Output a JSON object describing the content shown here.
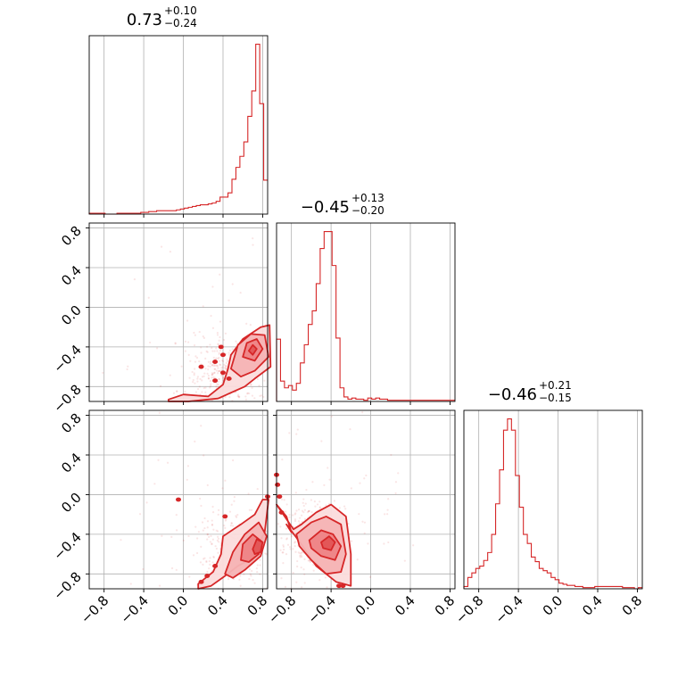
{
  "chart_data": {
    "type": "corner",
    "color": "#d62728",
    "shade_color": "#f4a7a8",
    "grid": true,
    "axis_range": [
      -0.95,
      0.85
    ],
    "ticks": [
      -0.8,
      -0.4,
      0.0,
      0.4,
      0.8
    ],
    "tick_labels": [
      "−0.8",
      "−0.4",
      "0.0",
      "0.4",
      "0.8"
    ],
    "titles": [
      {
        "median": "0.73",
        "plus": "+0.10",
        "minus": "−0.24"
      },
      {
        "median": "−0.45",
        "plus": "+0.13",
        "minus": "−0.20"
      },
      {
        "median": "−0.46",
        "plus": "+0.21",
        "minus": "−0.15"
      }
    ],
    "histograms": [
      {
        "x": [
          -0.93,
          -0.89,
          -0.85,
          -0.81,
          -0.77,
          -0.73,
          -0.69,
          -0.65,
          -0.61,
          -0.57,
          -0.53,
          -0.49,
          -0.45,
          -0.41,
          -0.37,
          -0.33,
          -0.29,
          -0.25,
          -0.21,
          -0.17,
          -0.13,
          -0.09,
          -0.05,
          -0.01,
          0.03,
          0.07,
          0.11,
          0.15,
          0.19,
          0.23,
          0.27,
          0.31,
          0.35,
          0.39,
          0.43,
          0.47,
          0.51,
          0.55,
          0.59,
          0.63,
          0.67,
          0.71,
          0.75,
          0.79,
          0.83
        ],
        "counts": [
          1,
          1,
          1,
          1,
          0,
          0,
          0,
          1,
          1,
          1,
          1,
          1,
          1,
          2,
          2,
          3,
          3,
          4,
          4,
          4,
          4,
          4,
          5,
          6,
          7,
          8,
          9,
          10,
          11,
          11,
          12,
          13,
          15,
          20,
          20,
          25,
          41,
          55,
          68,
          85,
          115,
          145,
          200,
          130,
          40
        ]
      },
      {
        "x": [
          -0.93,
          -0.89,
          -0.85,
          -0.81,
          -0.77,
          -0.73,
          -0.69,
          -0.65,
          -0.61,
          -0.57,
          -0.53,
          -0.49,
          -0.45,
          -0.41,
          -0.37,
          -0.33,
          -0.29,
          -0.25,
          -0.21,
          -0.17,
          -0.13,
          -0.09,
          -0.05,
          -0.01,
          0.03,
          0.07,
          0.11,
          0.15,
          0.19,
          0.23,
          0.27,
          0.31,
          0.35,
          0.39,
          0.43,
          0.47,
          0.51,
          0.55,
          0.59,
          0.63,
          0.67,
          0.71,
          0.75,
          0.79,
          0.83
        ],
        "counts": [
          55,
          18,
          12,
          14,
          10,
          16,
          34,
          50,
          68,
          80,
          104,
          135,
          150,
          150,
          120,
          56,
          12,
          4,
          2,
          3,
          2,
          2,
          1,
          3,
          2,
          3,
          2,
          2,
          1,
          1,
          1,
          1,
          1,
          1,
          1,
          1,
          1,
          1,
          1,
          1,
          1,
          1,
          1,
          1,
          1
        ]
      },
      {
        "x": [
          -0.93,
          -0.89,
          -0.85,
          -0.81,
          -0.77,
          -0.73,
          -0.69,
          -0.65,
          -0.61,
          -0.57,
          -0.53,
          -0.49,
          -0.45,
          -0.41,
          -0.37,
          -0.33,
          -0.29,
          -0.25,
          -0.21,
          -0.17,
          -0.13,
          -0.09,
          -0.05,
          -0.01,
          0.03,
          0.07,
          0.11,
          0.15,
          0.19,
          0.23,
          0.27,
          0.31,
          0.35,
          0.39,
          0.43,
          0.47,
          0.51,
          0.55,
          0.59,
          0.63,
          0.67,
          0.71,
          0.75,
          0.79,
          0.83
        ],
        "counts": [
          2,
          10,
          14,
          18,
          20,
          25,
          32,
          48,
          75,
          105,
          140,
          150,
          140,
          100,
          72,
          48,
          40,
          28,
          24,
          18,
          16,
          14,
          10,
          8,
          5,
          4,
          3,
          3,
          2,
          2,
          1,
          1,
          1,
          2,
          2,
          2,
          2,
          2,
          2,
          2,
          1,
          1,
          1,
          0,
          1
        ]
      }
    ],
    "pairs": [
      {
        "row": 1,
        "col": 0,
        "levels": [
          [
            [
              -0.15,
              -0.93
            ],
            [
              0.0,
              -0.88
            ],
            [
              0.25,
              -0.9
            ],
            [
              0.4,
              -0.78
            ],
            [
              0.45,
              -0.62
            ],
            [
              0.48,
              -0.48
            ],
            [
              0.6,
              -0.32
            ],
            [
              0.78,
              -0.2
            ],
            [
              0.87,
              -0.18
            ],
            [
              0.88,
              -0.6
            ],
            [
              0.72,
              -0.72
            ],
            [
              0.62,
              -0.8
            ],
            [
              0.35,
              -0.92
            ],
            [
              0.05,
              -0.95
            ],
            [
              -0.15,
              -0.95
            ]
          ],
          [
            [
              0.48,
              -0.62
            ],
            [
              0.55,
              -0.38
            ],
            [
              0.68,
              -0.27
            ],
            [
              0.82,
              -0.28
            ],
            [
              0.86,
              -0.5
            ],
            [
              0.72,
              -0.64
            ],
            [
              0.58,
              -0.7
            ]
          ],
          [
            [
              0.6,
              -0.5
            ],
            [
              0.64,
              -0.36
            ],
            [
              0.74,
              -0.32
            ],
            [
              0.8,
              -0.42
            ],
            [
              0.72,
              -0.54
            ]
          ],
          [
            [
              0.66,
              -0.44
            ],
            [
              0.7,
              -0.38
            ],
            [
              0.74,
              -0.42
            ],
            [
              0.7,
              -0.48
            ]
          ]
        ],
        "blobs": [
          [
            0.38,
            -0.4
          ],
          [
            0.4,
            -0.48
          ],
          [
            0.32,
            -0.55
          ],
          [
            0.18,
            -0.6
          ],
          [
            0.32,
            -0.74
          ],
          [
            0.4,
            -0.66
          ],
          [
            0.46,
            -0.72
          ]
        ]
      },
      {
        "row": 2,
        "col": 0,
        "levels": [
          [
            [
              0.15,
              -0.95
            ],
            [
              0.28,
              -0.92
            ],
            [
              0.42,
              -0.82
            ],
            [
              0.55,
              -0.72
            ],
            [
              0.68,
              -0.65
            ],
            [
              0.82,
              -0.38
            ],
            [
              0.86,
              -0.05
            ],
            [
              0.8,
              -0.05
            ],
            [
              0.72,
              -0.2
            ],
            [
              0.58,
              -0.3
            ],
            [
              0.4,
              -0.42
            ],
            [
              0.38,
              -0.6
            ],
            [
              0.3,
              -0.78
            ],
            [
              0.15,
              -0.9
            ]
          ],
          [
            [
              0.42,
              -0.8
            ],
            [
              0.5,
              -0.58
            ],
            [
              0.62,
              -0.4
            ],
            [
              0.76,
              -0.28
            ],
            [
              0.84,
              -0.42
            ],
            [
              0.78,
              -0.62
            ],
            [
              0.62,
              -0.76
            ],
            [
              0.5,
              -0.84
            ]
          ],
          [
            [
              0.58,
              -0.66
            ],
            [
              0.6,
              -0.5
            ],
            [
              0.7,
              -0.4
            ],
            [
              0.8,
              -0.48
            ],
            [
              0.76,
              -0.6
            ],
            [
              0.66,
              -0.68
            ]
          ],
          [
            [
              0.7,
              -0.55
            ],
            [
              0.74,
              -0.45
            ],
            [
              0.8,
              -0.48
            ],
            [
              0.78,
              -0.58
            ],
            [
              0.72,
              -0.6
            ]
          ]
        ],
        "blobs": [
          [
            -0.05,
            -0.05
          ],
          [
            0.42,
            -0.22
          ],
          [
            0.32,
            -0.72
          ],
          [
            0.24,
            -0.82
          ],
          [
            0.18,
            -0.88
          ],
          [
            0.85,
            -0.02
          ]
        ]
      },
      {
        "row": 2,
        "col": 1,
        "levels": [
          [
            [
              -0.95,
              -0.1
            ],
            [
              -0.85,
              -0.22
            ],
            [
              -0.8,
              -0.38
            ],
            [
              -0.85,
              -0.3
            ],
            [
              -0.7,
              -0.5
            ],
            [
              -0.55,
              -0.72
            ],
            [
              -0.35,
              -0.88
            ],
            [
              -0.2,
              -0.92
            ],
            [
              -0.2,
              -0.6
            ],
            [
              -0.25,
              -0.22
            ],
            [
              -0.4,
              -0.1
            ],
            [
              -0.55,
              -0.18
            ],
            [
              -0.7,
              -0.3
            ],
            [
              -0.78,
              -0.35
            ]
          ],
          [
            [
              -0.75,
              -0.4
            ],
            [
              -0.6,
              -0.28
            ],
            [
              -0.45,
              -0.22
            ],
            [
              -0.3,
              -0.3
            ],
            [
              -0.25,
              -0.6
            ],
            [
              -0.3,
              -0.78
            ],
            [
              -0.45,
              -0.8
            ],
            [
              -0.6,
              -0.66
            ],
            [
              -0.72,
              -0.52
            ]
          ],
          [
            [
              -0.62,
              -0.46
            ],
            [
              -0.5,
              -0.36
            ],
            [
              -0.38,
              -0.4
            ],
            [
              -0.3,
              -0.52
            ],
            [
              -0.36,
              -0.66
            ],
            [
              -0.5,
              -0.62
            ],
            [
              -0.6,
              -0.54
            ]
          ],
          [
            [
              -0.5,
              -0.48
            ],
            [
              -0.42,
              -0.42
            ],
            [
              -0.36,
              -0.48
            ],
            [
              -0.4,
              -0.56
            ],
            [
              -0.48,
              -0.54
            ]
          ]
        ],
        "blobs": [
          [
            -0.95,
            0.2
          ],
          [
            -0.94,
            0.1
          ],
          [
            -0.92,
            -0.02
          ],
          [
            -0.9,
            -0.18
          ],
          [
            -0.32,
            -0.92
          ],
          [
            -0.28,
            -0.92
          ]
        ]
      }
    ]
  }
}
